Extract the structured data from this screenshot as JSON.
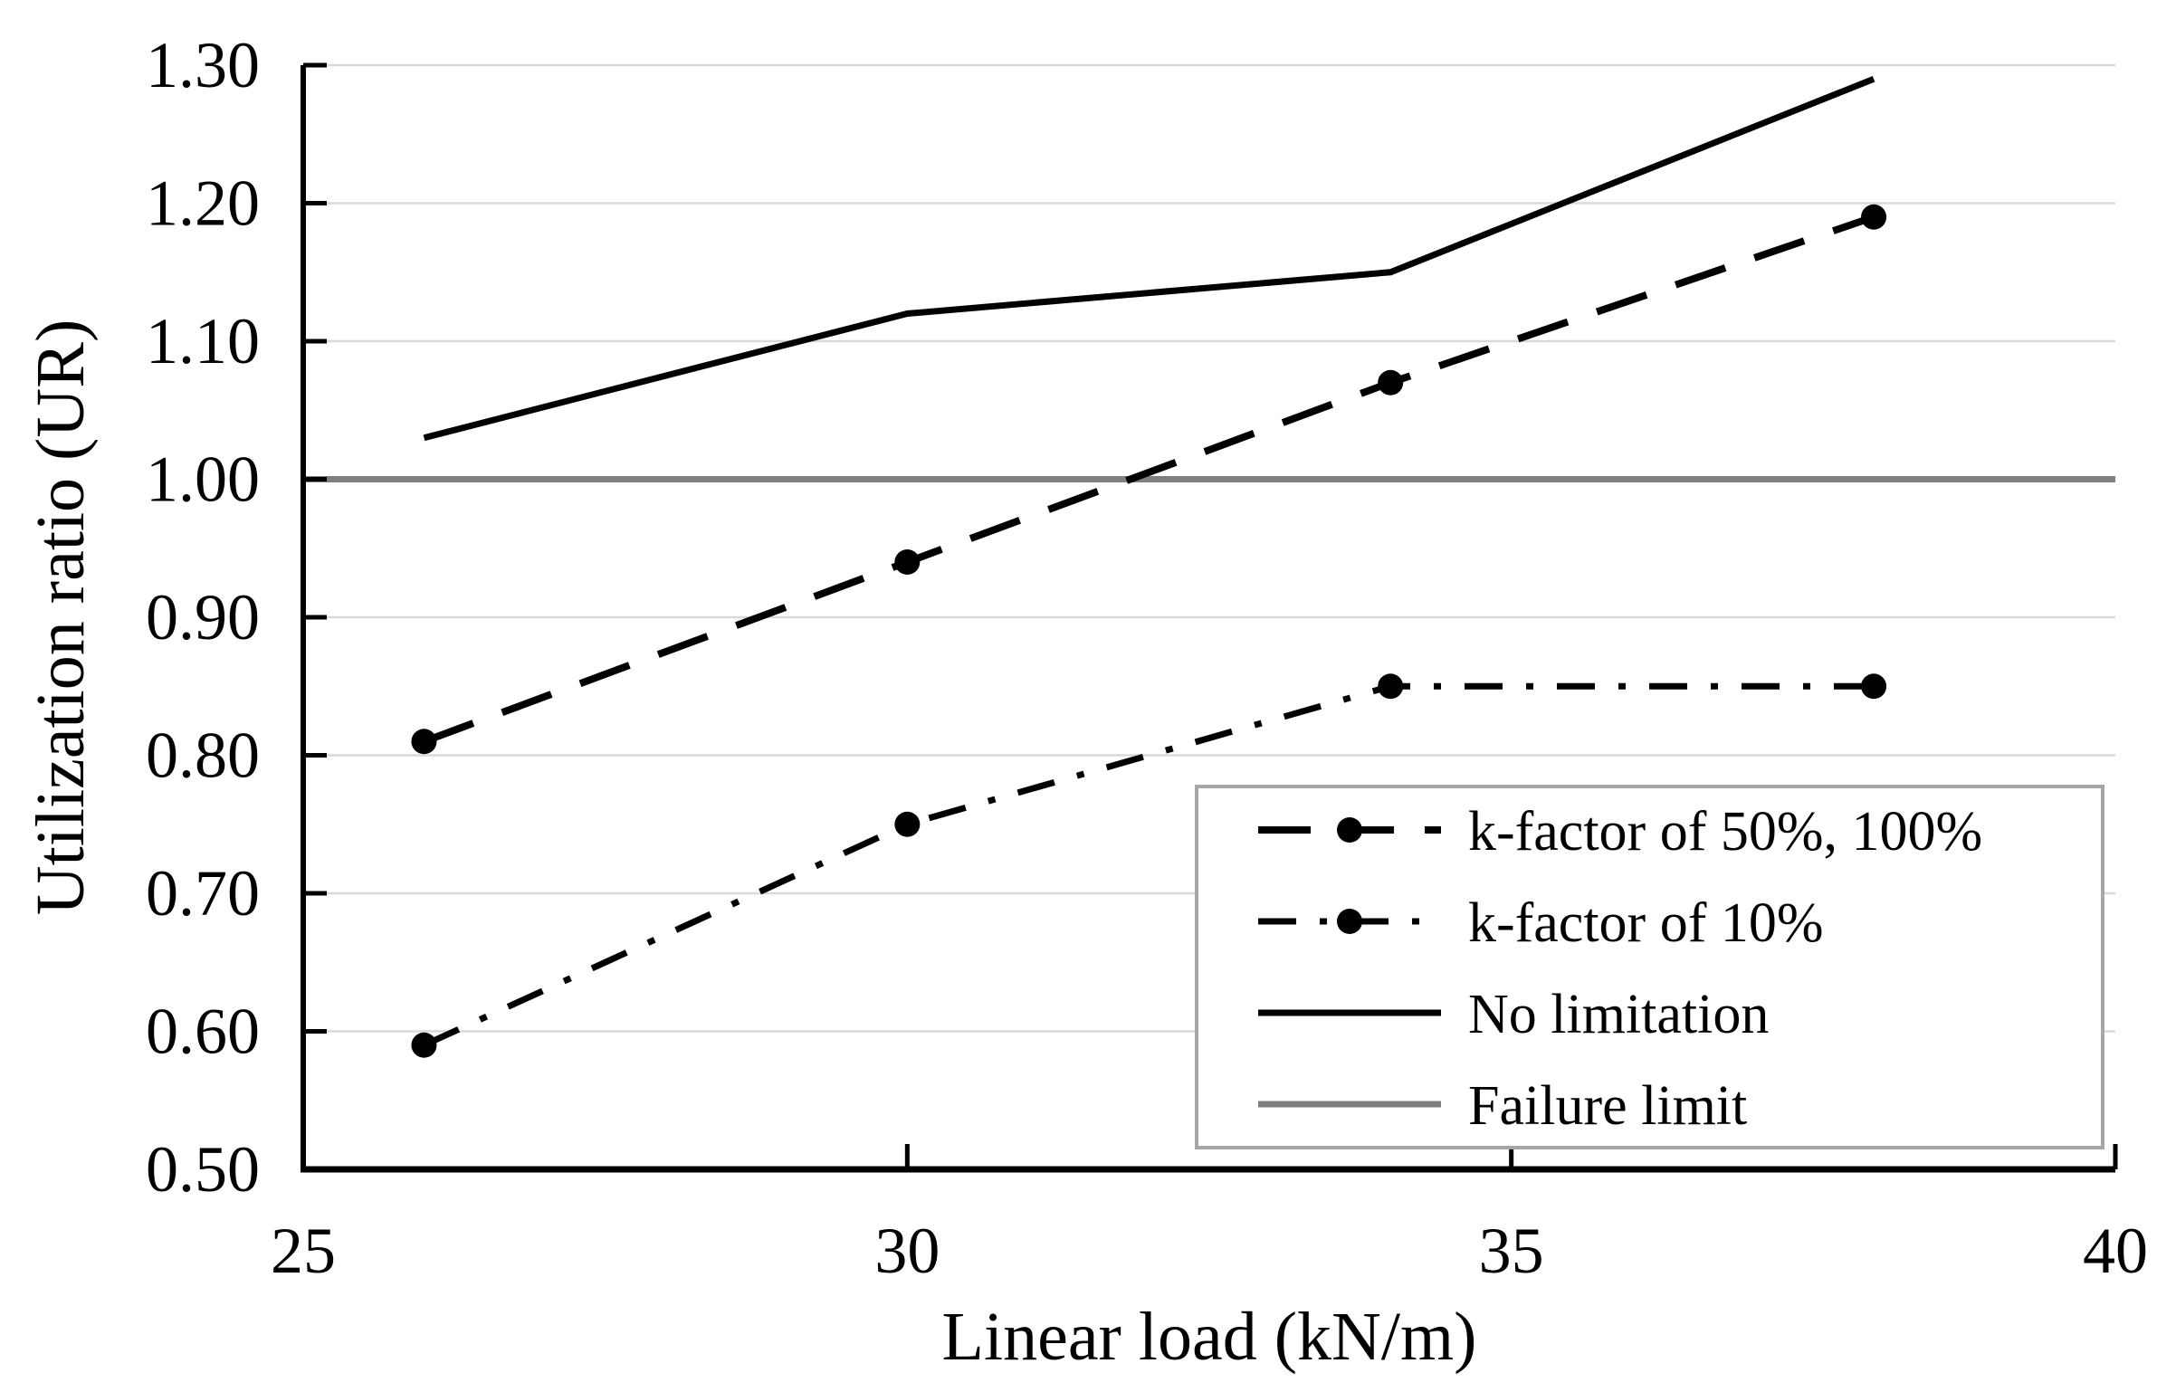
{
  "page": {
    "background": "#ffffff"
  },
  "chart_data": {
    "type": "line",
    "title": "",
    "xlabel": "Linear load (kN/m)",
    "ylabel": "Utilization ratio (UR)",
    "xlim": [
      25,
      40
    ],
    "ylim": [
      0.5,
      1.3
    ],
    "xticks": [
      25,
      30,
      35,
      40
    ],
    "xtick_labels": [
      "25",
      "30",
      "35",
      "40"
    ],
    "yticks": [
      0.5,
      0.6,
      0.7,
      0.8,
      0.9,
      1.0,
      1.1,
      1.2,
      1.3
    ],
    "ytick_labels": [
      "0.50",
      "0.60",
      "0.70",
      "0.80",
      "0.90",
      "1.00",
      "1.10",
      "1.20",
      "1.30"
    ],
    "grid": "horizontal",
    "x": [
      26,
      30,
      34,
      38
    ],
    "series": [
      {
        "name": "k-factor of 50%, 100%",
        "values": [
          0.81,
          0.94,
          1.07,
          1.19
        ],
        "line_style": "dashed",
        "marker": "circle",
        "color": "#000000"
      },
      {
        "name": "k-factor of 10%",
        "values": [
          0.59,
          0.75,
          0.85,
          0.85
        ],
        "line_style": "dashdot",
        "marker": "circle",
        "color": "#000000"
      },
      {
        "name": "No limitation",
        "values": [
          1.03,
          1.12,
          1.15,
          1.29
        ],
        "line_style": "solid",
        "marker": "none",
        "color": "#000000"
      },
      {
        "name": "Failure limit",
        "x": [
          25,
          40
        ],
        "values": [
          1.0,
          1.0
        ],
        "line_style": "solid",
        "marker": "none",
        "color": "#808080"
      }
    ],
    "legend": {
      "position": "inside-bottom-right",
      "entries": [
        "k-factor of 50%, 100%",
        "k-factor of 10%",
        "No limitation",
        "Failure limit"
      ]
    },
    "colors": {
      "axis": "#000000",
      "grid": "#d9d9d9",
      "legend_border": "#a6a6a6",
      "background": "#ffffff"
    }
  }
}
